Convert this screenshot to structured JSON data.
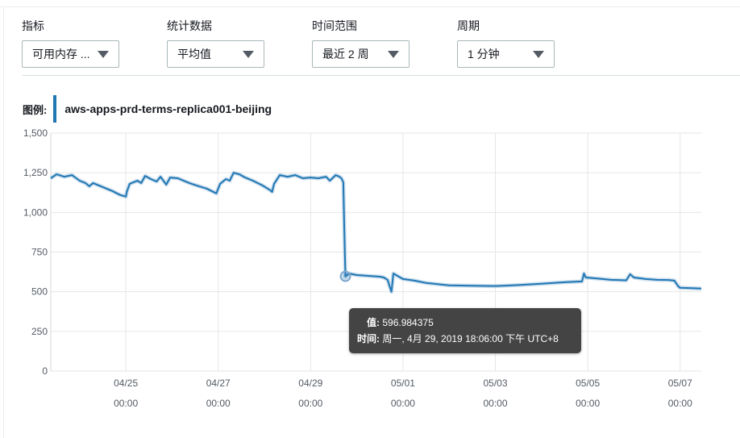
{
  "controls": [
    {
      "label": "指标",
      "value": "可用内存 ..."
    },
    {
      "label": "统计数据",
      "value": "平均值"
    },
    {
      "label": "时间范围",
      "value": "最近 2 周"
    },
    {
      "label": "周期",
      "value": "1 分钟"
    }
  ],
  "legend": {
    "title": "图例:",
    "entry": "aws-apps-prd-terms-replica001-beijing"
  },
  "tooltip": {
    "value_label": "值:",
    "value": "596.984375",
    "time_label": "时间:",
    "time": "周一, 4月 29, 2019 18:06:00 下午 UTC+8"
  },
  "colors": {
    "series": "#1f77b4",
    "tooltip_bg": "#444444"
  },
  "chart_data": {
    "type": "line",
    "title": "",
    "xlabel": "",
    "ylabel": "",
    "ylim": [
      0,
      1500
    ],
    "yticks": [
      0,
      250,
      500,
      750,
      1000,
      1250,
      1500
    ],
    "ytick_labels": [
      "0",
      "250",
      "500",
      "750",
      "1,000",
      "1,250",
      "1,500"
    ],
    "xlim": [
      "2019-04-23 09:00",
      "2019-05-07 11:00"
    ],
    "xticks": [
      {
        "date": "2019-04-25 00:00",
        "date_label": "04/25",
        "time_label": "00:00"
      },
      {
        "date": "2019-04-27 00:00",
        "date_label": "04/27",
        "time_label": "00:00"
      },
      {
        "date": "2019-04-29 00:00",
        "date_label": "04/29",
        "time_label": "00:00"
      },
      {
        "date": "2019-05-01 00:00",
        "date_label": "05/01",
        "time_label": "00:00"
      },
      {
        "date": "2019-05-03 00:00",
        "date_label": "05/03",
        "time_label": "00:00"
      },
      {
        "date": "2019-05-05 00:00",
        "date_label": "05/05",
        "time_label": "00:00"
      },
      {
        "date": "2019-05-07 00:00",
        "date_label": "05/07",
        "time_label": "00:00"
      }
    ],
    "grid": true,
    "legend": "top-left",
    "series": [
      {
        "name": "aws-apps-prd-terms-replica001-beijing",
        "points": [
          [
            "2019-04-23 09:00",
            1215
          ],
          [
            "2019-04-23 12:00",
            1240
          ],
          [
            "2019-04-23 16:00",
            1225
          ],
          [
            "2019-04-23 20:00",
            1235
          ],
          [
            "2019-04-24 00:00",
            1200
          ],
          [
            "2019-04-24 03:00",
            1185
          ],
          [
            "2019-04-24 05:00",
            1165
          ],
          [
            "2019-04-24 07:00",
            1185
          ],
          [
            "2019-04-24 12:00",
            1160
          ],
          [
            "2019-04-24 17:00",
            1135
          ],
          [
            "2019-04-24 21:00",
            1110
          ],
          [
            "2019-04-25 00:00",
            1100
          ],
          [
            "2019-04-25 00:30",
            1130
          ],
          [
            "2019-04-25 02:00",
            1180
          ],
          [
            "2019-04-25 06:00",
            1200
          ],
          [
            "2019-04-25 08:00",
            1185
          ],
          [
            "2019-04-25 10:00",
            1230
          ],
          [
            "2019-04-25 13:00",
            1210
          ],
          [
            "2019-04-25 16:00",
            1195
          ],
          [
            "2019-04-25 18:00",
            1225
          ],
          [
            "2019-04-25 21:00",
            1175
          ],
          [
            "2019-04-25 23:00",
            1220
          ],
          [
            "2019-04-26 03:00",
            1215
          ],
          [
            "2019-04-26 09:00",
            1185
          ],
          [
            "2019-04-26 14:00",
            1165
          ],
          [
            "2019-04-26 18:00",
            1150
          ],
          [
            "2019-04-26 23:00",
            1120
          ],
          [
            "2019-04-27 01:00",
            1180
          ],
          [
            "2019-04-27 04:00",
            1210
          ],
          [
            "2019-04-27 06:00",
            1200
          ],
          [
            "2019-04-27 08:00",
            1250
          ],
          [
            "2019-04-27 11:00",
            1240
          ],
          [
            "2019-04-27 14:00",
            1220
          ],
          [
            "2019-04-27 18:00",
            1200
          ],
          [
            "2019-04-27 23:00",
            1170
          ],
          [
            "2019-04-28 03:00",
            1140
          ],
          [
            "2019-04-28 04:00",
            1130
          ],
          [
            "2019-04-28 05:00",
            1180
          ],
          [
            "2019-04-28 08:00",
            1235
          ],
          [
            "2019-04-28 12:00",
            1225
          ],
          [
            "2019-04-28 16:00",
            1235
          ],
          [
            "2019-04-28 20:00",
            1215
          ],
          [
            "2019-04-29 00:00",
            1220
          ],
          [
            "2019-04-29 04:00",
            1215
          ],
          [
            "2019-04-29 08:00",
            1225
          ],
          [
            "2019-04-29 10:00",
            1200
          ],
          [
            "2019-04-29 13:00",
            1235
          ],
          [
            "2019-04-29 15:00",
            1225
          ],
          [
            "2019-04-29 16:00",
            1215
          ],
          [
            "2019-04-29 17:00",
            1190
          ],
          [
            "2019-04-29 17:30",
            900
          ],
          [
            "2019-04-29 18:06",
            597
          ],
          [
            "2019-04-29 20:00",
            615
          ],
          [
            "2019-04-30 00:00",
            605
          ],
          [
            "2019-04-30 06:00",
            600
          ],
          [
            "2019-04-30 12:00",
            595
          ],
          [
            "2019-04-30 14:00",
            590
          ],
          [
            "2019-04-30 16:00",
            575
          ],
          [
            "2019-04-30 18:00",
            500
          ],
          [
            "2019-04-30 19:00",
            615
          ],
          [
            "2019-05-01 00:00",
            580
          ],
          [
            "2019-05-01 06:00",
            570
          ],
          [
            "2019-05-01 12:00",
            555
          ],
          [
            "2019-05-02 00:00",
            540
          ],
          [
            "2019-05-02 12:00",
            538
          ],
          [
            "2019-05-03 00:00",
            536
          ],
          [
            "2019-05-03 12:00",
            542
          ],
          [
            "2019-05-04 00:00",
            550
          ],
          [
            "2019-05-04 12:00",
            560
          ],
          [
            "2019-05-04 21:00",
            565
          ],
          [
            "2019-05-04 22:00",
            615
          ],
          [
            "2019-05-04 23:00",
            590
          ],
          [
            "2019-05-05 06:00",
            582
          ],
          [
            "2019-05-05 12:00",
            575
          ],
          [
            "2019-05-05 20:00",
            572
          ],
          [
            "2019-05-05 22:00",
            610
          ],
          [
            "2019-05-06 00:00",
            590
          ],
          [
            "2019-05-06 06:00",
            580
          ],
          [
            "2019-05-06 12:00",
            575
          ],
          [
            "2019-05-06 18:00",
            574
          ],
          [
            "2019-05-06 21:00",
            570
          ],
          [
            "2019-05-06 23:00",
            535
          ],
          [
            "2019-05-07 00:00",
            525
          ],
          [
            "2019-05-07 06:00",
            522
          ],
          [
            "2019-05-07 11:00",
            520
          ]
        ]
      }
    ],
    "highlight": {
      "x": "2019-04-29 18:06",
      "y": 596.984375
    }
  }
}
